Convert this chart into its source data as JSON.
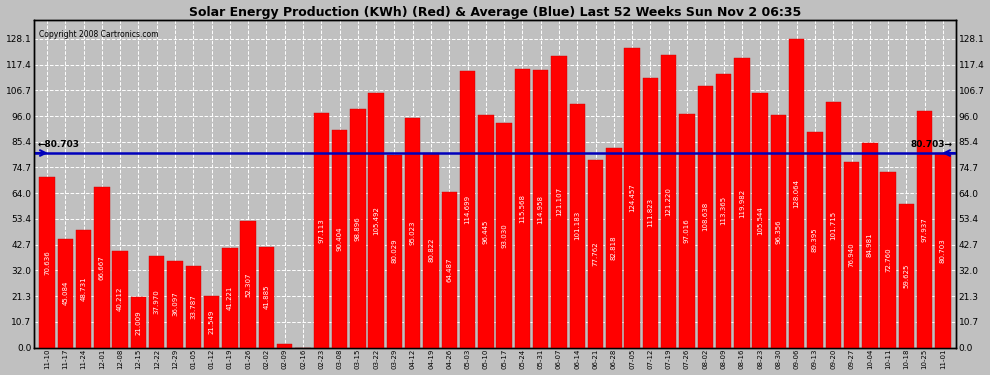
{
  "title": "Solar Energy Production (KWh) (Red) & Average (Blue) Last 52 Weeks Sun Nov 2 06:35",
  "copyright": "Copyright 2008 Cartronics.com",
  "average": 80.703,
  "categories": [
    "11-10",
    "11-17",
    "11-24",
    "12-01",
    "12-08",
    "12-15",
    "12-22",
    "12-29",
    "01-05",
    "01-12",
    "01-19",
    "01-26",
    "02-02",
    "02-09",
    "02-16",
    "02-23",
    "03-08",
    "03-15",
    "03-22",
    "03-29",
    "04-12",
    "04-19",
    "04-26",
    "05-03",
    "05-10",
    "05-17",
    "05-24",
    "05-31",
    "06-07",
    "06-14",
    "06-21",
    "06-28",
    "07-05",
    "07-12",
    "07-19",
    "07-26",
    "08-02",
    "08-09",
    "08-16",
    "08-23",
    "08-30",
    "09-06",
    "09-13",
    "09-20",
    "09-27",
    "10-04",
    "10-11",
    "10-18",
    "10-25",
    "11-01"
  ],
  "values": [
    70.636,
    45.084,
    48.731,
    66.667,
    40.212,
    21.009,
    37.97,
    36.097,
    33.787,
    21.549,
    41.221,
    52.307,
    41.885,
    1.413,
    0.0,
    97.113,
    90.404,
    98.896,
    105.492,
    80.029,
    95.023,
    80.822,
    64.487,
    114.699,
    96.445,
    93.03,
    115.568,
    114.958,
    121.107,
    101.183,
    77.762,
    82.818,
    124.457,
    111.823,
    121.22,
    97.016,
    108.638,
    113.365,
    119.982,
    105.544,
    96.356,
    128.064,
    89.395,
    101.715,
    76.94,
    84.981,
    72.76,
    59.625,
    97.937,
    80.703
  ],
  "bar_color": "#ff0000",
  "line_color": "#0000bb",
  "bg_color": "#c0c0c0",
  "grid_color": "#ffffff",
  "title_fontsize": 9,
  "bar_label_fontsize": 5.0,
  "tick_fontsize": 6.5,
  "yticks": [
    0.0,
    10.7,
    21.3,
    32.0,
    42.7,
    53.4,
    64.0,
    74.7,
    85.4,
    96.0,
    106.7,
    117.4,
    128.1
  ],
  "ylim_max": 136.0
}
